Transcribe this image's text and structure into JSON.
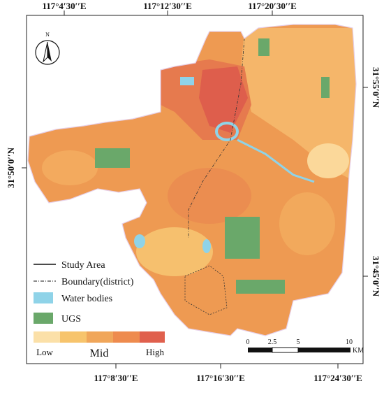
{
  "map": {
    "top_labels": [
      "117°4′30′′E",
      "117°12′30′′E",
      "117°20′30′′E"
    ],
    "bottom_labels": [
      "117°8′30′′E",
      "117°16′30′′E",
      "117°24′30′′E"
    ],
    "left_labels": [
      "31°50′0′′N"
    ],
    "right_labels": [
      "31°55′0′′N",
      "31°45′0′′N"
    ],
    "north": "N",
    "legend": {
      "study_area": "Study Area",
      "boundary": "Boundary(district)",
      "water": "Water bodies",
      "ugs": "UGS",
      "low": "Low",
      "mid": "Mid",
      "high": "High"
    },
    "scale": [
      "0",
      "2.5",
      "5",
      "10",
      "KM"
    ]
  }
}
